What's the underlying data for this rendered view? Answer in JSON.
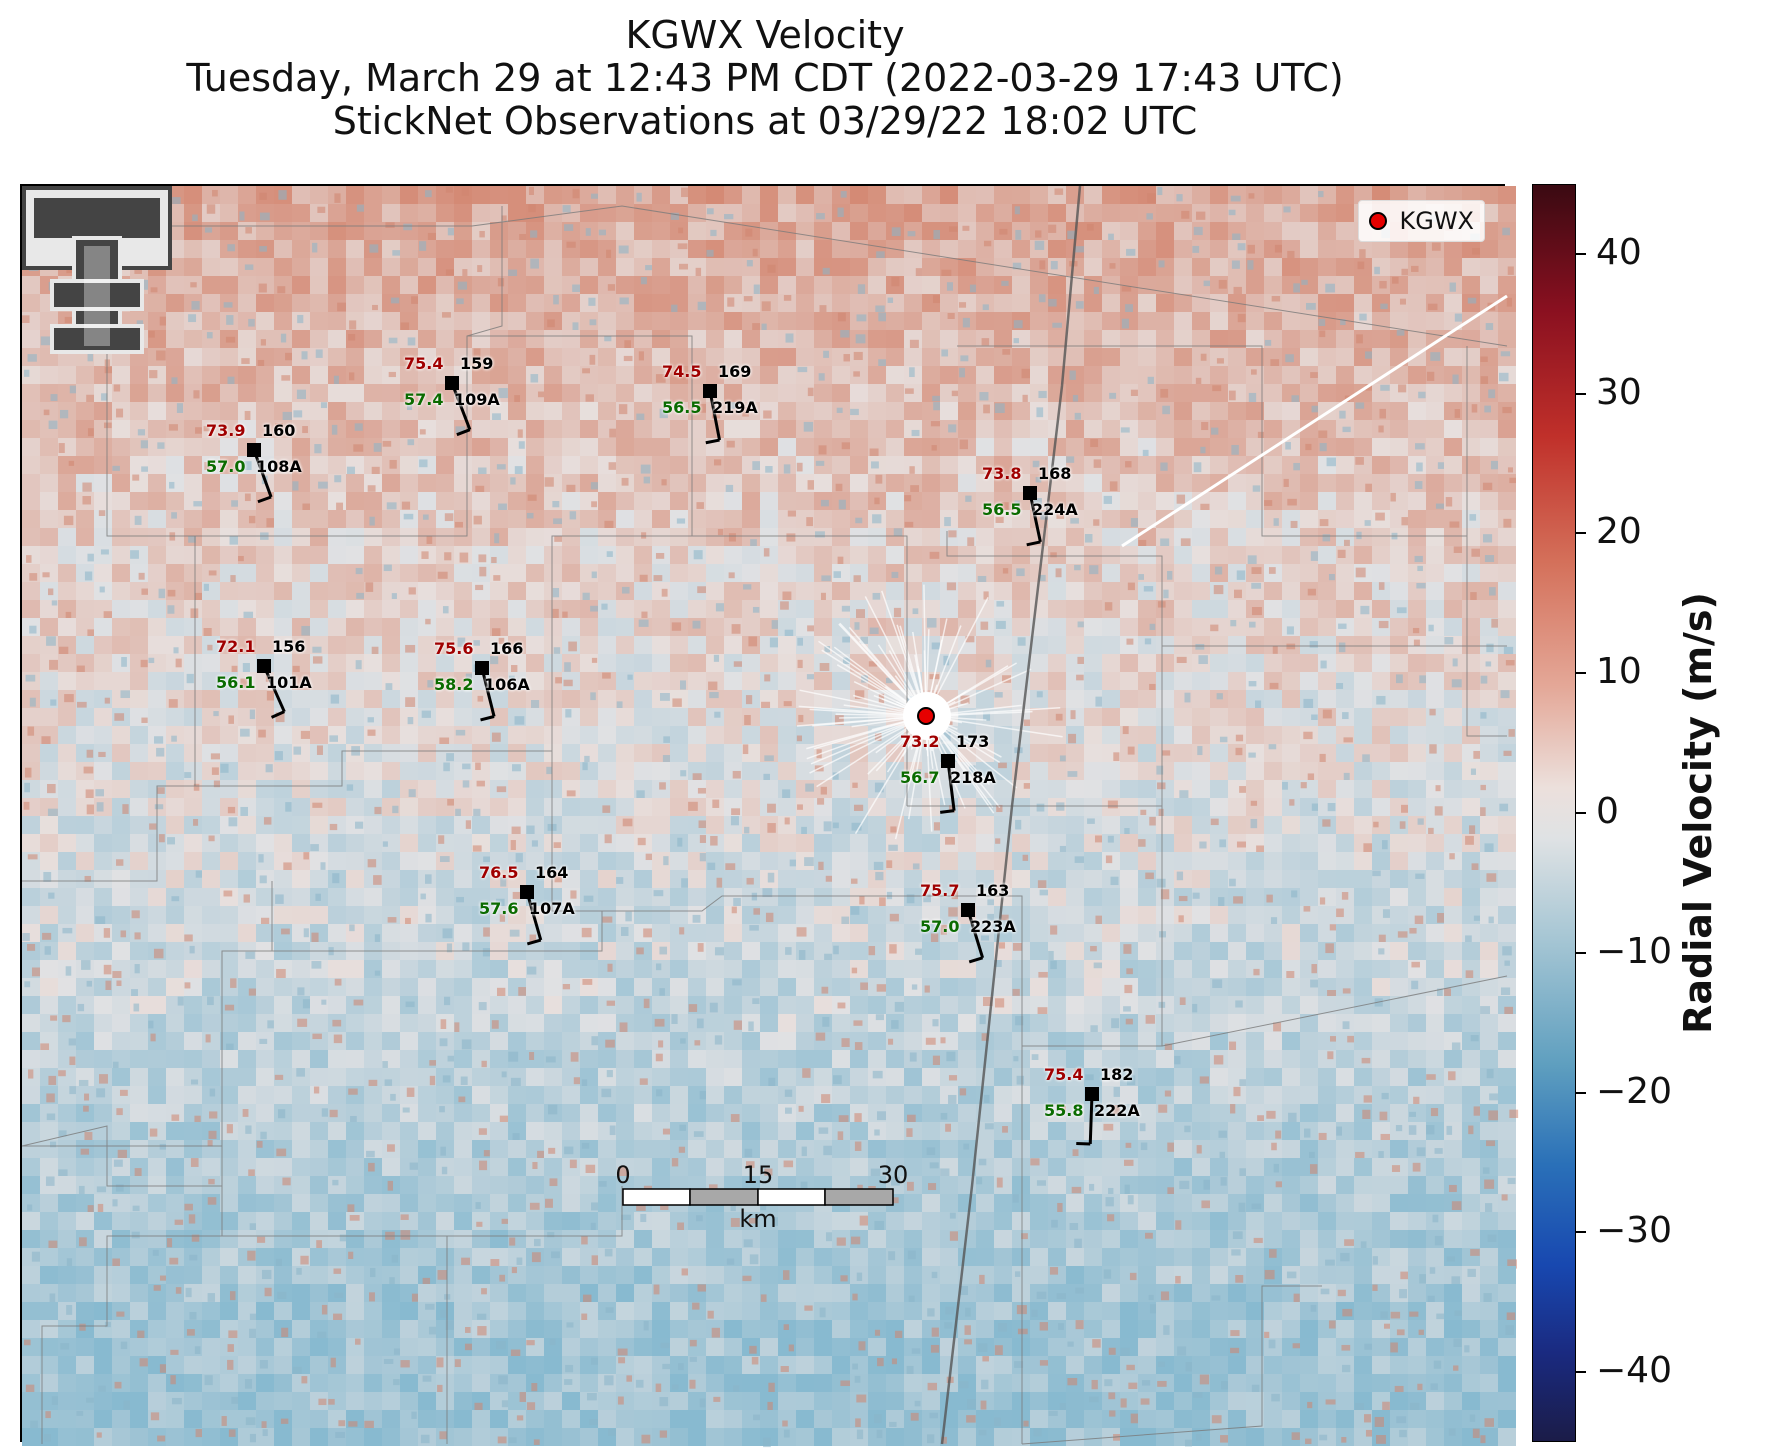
{
  "title": {
    "line1": "KGWX Velocity",
    "line2": "Tuesday, March 29 at 12:43 PM CDT (2022-03-29 17:43 UTC)",
    "line3": "StickNet Observations at 03/29/22 18:02 UTC"
  },
  "legend": {
    "label": "KGWX",
    "marker_color": "#e60000"
  },
  "colorbar": {
    "label": "Radial Velocity (m/s)",
    "min": -45,
    "max": 45,
    "ticks": [
      "40",
      "30",
      "20",
      "10",
      "0",
      "−10",
      "−20",
      "−30",
      "−40"
    ],
    "tick_values": [
      40,
      30,
      20,
      10,
      0,
      -10,
      -20,
      -30,
      -40
    ]
  },
  "scalebar": {
    "unit": "km",
    "labels": [
      "0",
      "15",
      "30"
    ]
  },
  "stations": [
    {
      "id": "109A",
      "temp": "75.4",
      "dew": "57.4",
      "dir": "159"
    },
    {
      "id": "219A",
      "temp": "74.5",
      "dew": "56.5",
      "dir": "169"
    },
    {
      "id": "108A",
      "temp": "73.9",
      "dew": "57.0",
      "dir": "160"
    },
    {
      "id": "224A",
      "temp": "73.8",
      "dew": "56.5",
      "dir": "168"
    },
    {
      "id": "101A",
      "temp": "72.1",
      "dew": "56.1",
      "dir": "156"
    },
    {
      "id": "106A",
      "temp": "75.6",
      "dew": "58.2",
      "dir": "166"
    },
    {
      "id": "218A",
      "temp": "73.2",
      "dew": "56.7",
      "dir": "173"
    },
    {
      "id": "107A",
      "temp": "76.5",
      "dew": "57.6",
      "dir": "164"
    },
    {
      "id": "223A",
      "temp": "75.7",
      "dew": "57.0",
      "dir": "163"
    },
    {
      "id": "222A",
      "temp": "75.4",
      "dew": "55.8",
      "dir": "182"
    }
  ],
  "colors": {
    "outbound": "#d98c78",
    "inbound": "#8fb8cc",
    "neutral": "#e8e2e0",
    "radar_marker": "#e60000",
    "temp_text": "#a00000",
    "dew_text": "#0a6b00"
  },
  "map_icons": [
    "texas-tech-logo-icon",
    "radar-site-icon",
    "wind-barb-icon"
  ]
}
